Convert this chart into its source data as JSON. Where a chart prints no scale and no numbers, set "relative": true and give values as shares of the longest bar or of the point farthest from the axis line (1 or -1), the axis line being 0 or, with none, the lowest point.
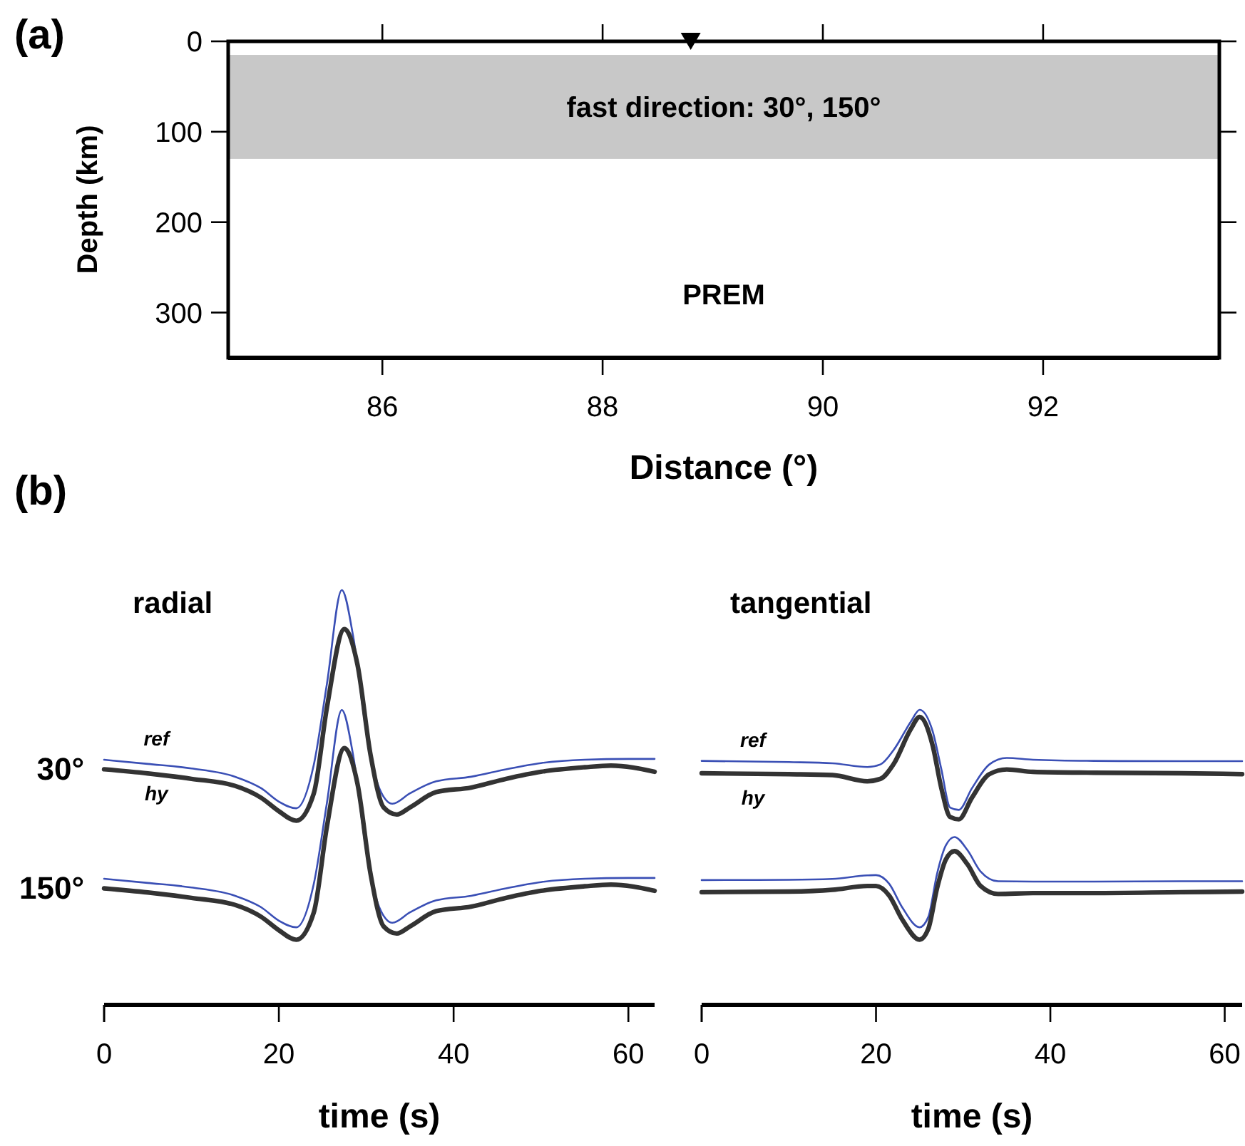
{
  "chart_data": [
    {
      "type": "scatter",
      "xlabel": "Distance (°)",
      "ylabel": "Depth (km)",
      "xlim": [
        84.6,
        93.6
      ],
      "xticks": [
        86,
        88,
        90,
        92
      ],
      "ylim": [
        350,
        0
      ],
      "yticks": [
        0,
        100,
        200,
        300
      ],
      "marker": "triangle",
      "series": [
        {
          "color": "#000000",
          "x": [
            88.8
          ],
          "values": [
            0
          ]
        }
      ],
      "bands": [
        {
          "axis": "y",
          "from": 15,
          "to": 130,
          "label": "fast direction: 30°, 150°",
          "color": "#c8c8c8"
        }
      ],
      "annotations": [
        "(a)",
        "PREM"
      ]
    },
    {
      "type": "line",
      "title": "radial",
      "xlabel": "time (s)",
      "xlim": [
        0,
        63
      ],
      "xticks": [
        0,
        20,
        40,
        60
      ],
      "relative": true,
      "annotations": [
        "(b)",
        "30°",
        "150°"
      ],
      "series": [
        {
          "name": "ref",
          "color": "#3a4fb5",
          "x": [
            0,
            5,
            10,
            15,
            18,
            20,
            22,
            24,
            25.5,
            27.2,
            28.5,
            30,
            31.5,
            33,
            35,
            38,
            42,
            46,
            50,
            55,
            60,
            63
          ],
          "values": [
            0.591,
            0.581,
            0.57,
            0.55,
            0.522,
            0.49,
            0.474,
            0.579,
            0.774,
            1.0,
            0.889,
            0.659,
            0.522,
            0.485,
            0.51,
            0.539,
            0.55,
            0.568,
            0.583,
            0.591,
            0.593,
            0.593
          ]
        },
        {
          "name": "hy",
          "color": "#333333",
          "x": [
            0,
            5,
            10,
            15,
            18,
            20,
            22,
            24,
            25.5,
            27.5,
            29,
            30.5,
            32,
            33.5,
            35,
            38,
            42,
            46,
            50,
            55,
            58,
            63
          ],
          "values": [
            0.568,
            0.558,
            0.545,
            0.528,
            0.499,
            0.467,
            0.444,
            0.51,
            0.717,
            0.906,
            0.82,
            0.602,
            0.476,
            0.459,
            0.476,
            0.513,
            0.524,
            0.545,
            0.562,
            0.573,
            0.577,
            0.562
          ]
        },
        {
          "color": "#3a4fb5",
          "x": [
            0,
            5,
            10,
            15,
            18,
            20,
            22,
            24,
            25.5,
            27.2,
            28.5,
            30,
            31.5,
            33,
            35,
            38,
            42,
            46,
            50,
            55,
            60,
            63
          ],
          "values": [
            0.304,
            0.294,
            0.283,
            0.263,
            0.235,
            0.203,
            0.187,
            0.292,
            0.487,
            0.711,
            0.602,
            0.372,
            0.235,
            0.198,
            0.223,
            0.252,
            0.263,
            0.281,
            0.296,
            0.304,
            0.306,
            0.306
          ]
        },
        {
          "color": "#333333",
          "x": [
            0,
            5,
            10,
            15,
            18,
            20,
            22,
            24,
            25.5,
            27.5,
            29,
            30.5,
            32,
            33.5,
            35,
            38,
            42,
            46,
            50,
            55,
            58,
            63
          ],
          "values": [
            0.281,
            0.271,
            0.258,
            0.241,
            0.212,
            0.18,
            0.157,
            0.223,
            0.43,
            0.619,
            0.533,
            0.315,
            0.189,
            0.172,
            0.189,
            0.226,
            0.237,
            0.258,
            0.275,
            0.286,
            0.29,
            0.275
          ]
        }
      ]
    },
    {
      "type": "line",
      "title": "tangential",
      "xlabel": "time (s)",
      "xlim": [
        0,
        62
      ],
      "xticks": [
        0,
        20,
        40,
        60
      ],
      "relative": true,
      "series": [
        {
          "name": "ref",
          "color": "#3a4fb5",
          "x": [
            0,
            10,
            15,
            19,
            20.5,
            22,
            24,
            25,
            26.5,
            27.5,
            28.5,
            29.5,
            31,
            33,
            35,
            38,
            45,
            55,
            62
          ],
          "values": [
            0.827,
            0.823,
            0.819,
            0.806,
            0.815,
            0.863,
            0.96,
            1.0,
            0.927,
            0.798,
            0.669,
            0.661,
            0.734,
            0.815,
            0.837,
            0.831,
            0.827,
            0.826,
            0.826
          ]
        },
        {
          "name": "hy",
          "color": "#333333",
          "x": [
            0,
            10,
            15,
            19,
            20.5,
            22,
            24,
            25,
            26.5,
            27.5,
            28.5,
            29.5,
            31,
            33,
            35,
            38,
            45,
            55,
            62
          ],
          "values": [
            0.785,
            0.782,
            0.779,
            0.758,
            0.766,
            0.815,
            0.935,
            0.976,
            0.879,
            0.734,
            0.637,
            0.629,
            0.702,
            0.782,
            0.798,
            0.79,
            0.787,
            0.785,
            0.782
          ]
        },
        {
          "color": "#3a4fb5",
          "x": [
            0,
            10,
            15,
            19,
            20,
            21.5,
            23,
            25,
            26,
            27,
            28,
            29,
            30.5,
            32,
            34,
            38,
            45,
            55,
            62
          ],
          "values": [
            0.423,
            0.424,
            0.427,
            0.439,
            0.44,
            0.411,
            0.331,
            0.263,
            0.298,
            0.444,
            0.54,
            0.569,
            0.524,
            0.452,
            0.419,
            0.418,
            0.418,
            0.419,
            0.419
          ]
        },
        {
          "color": "#333333",
          "x": [
            0,
            10,
            15,
            19,
            20,
            21.5,
            23,
            25,
            26,
            27,
            28,
            29,
            30.5,
            32,
            34,
            38,
            45,
            55,
            62
          ],
          "values": [
            0.382,
            0.384,
            0.39,
            0.403,
            0.403,
            0.371,
            0.29,
            0.221,
            0.258,
            0.395,
            0.492,
            0.521,
            0.476,
            0.403,
            0.376,
            0.379,
            0.379,
            0.382,
            0.384
          ]
        }
      ]
    }
  ]
}
